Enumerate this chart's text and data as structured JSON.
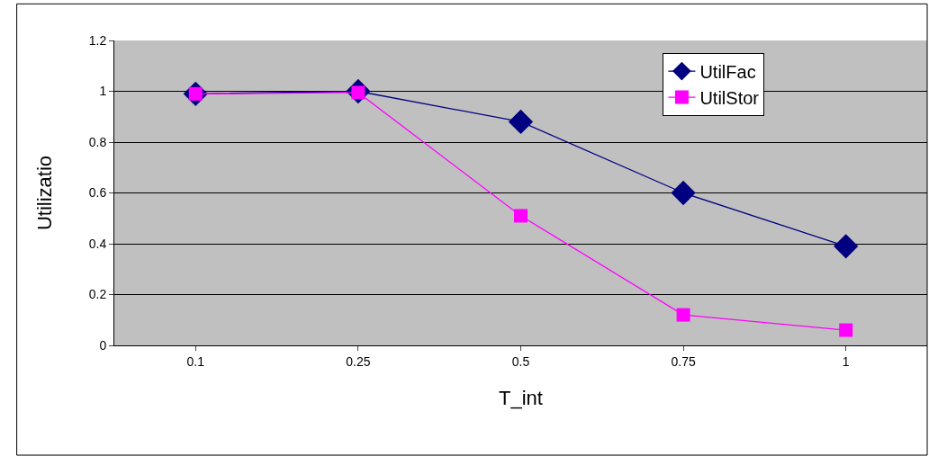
{
  "chart_data": {
    "type": "line",
    "xlabel": "T_int",
    "ylabel": "Utilizatio",
    "categories": [
      "0.1",
      "0.25",
      "0.5",
      "0.75",
      "1"
    ],
    "series": [
      {
        "name": "UtilFac",
        "color": "#000080",
        "marker": "diamond",
        "values": [
          0.99,
          1.0,
          0.88,
          0.6,
          0.39
        ]
      },
      {
        "name": "UtilStor",
        "color": "#ff00ff",
        "marker": "square",
        "values": [
          0.99,
          0.995,
          0.51,
          0.12,
          0.06
        ]
      }
    ],
    "ylim": [
      0,
      1.2
    ],
    "yticks": [
      0,
      0.2,
      0.4,
      0.6,
      0.8,
      1,
      1.2
    ],
    "grid": "y",
    "legend": "top right",
    "line_style": "solid"
  }
}
